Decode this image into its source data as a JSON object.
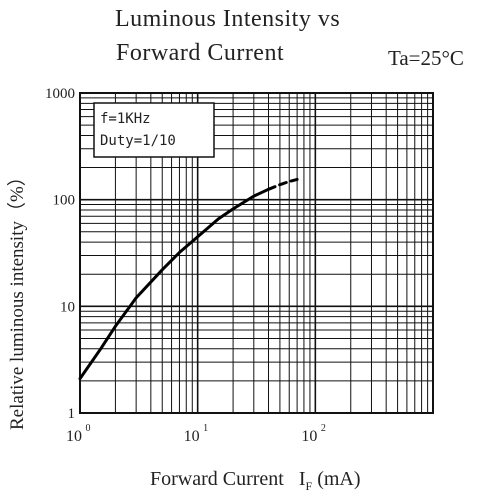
{
  "chart_data": {
    "type": "line",
    "title": "Luminous Intensity vs",
    "title_line2": "Forward Current",
    "condition": "Ta=25°C",
    "xlabel": "Forward Current",
    "xlabel_symbol": "I",
    "xlabel_sub": "F",
    "xlabel_unit": "(mA)",
    "ylabel": "Relative luminous intensity（%）",
    "x_scale": "log",
    "y_scale": "log",
    "xlim": [
      1,
      1000
    ],
    "ylim": [
      1,
      1000
    ],
    "x_ticks": [
      {
        "base": "10",
        "exp": "0"
      },
      {
        "base": "10",
        "exp": "1"
      },
      {
        "base": "10",
        "exp": "2"
      }
    ],
    "y_ticks": [
      "1",
      "10",
      "100",
      "1000"
    ],
    "legend_lines": [
      "f=1KHz",
      "Duty=1/10"
    ],
    "grid": true,
    "series": [
      {
        "x": [
          1,
          1.5,
          2,
          3,
          5,
          7,
          10,
          15,
          20,
          30,
          40
        ],
        "y": [
          2.1,
          4,
          6.5,
          12,
          22,
          32,
          45,
          66,
          82,
          108,
          125
        ],
        "style": "solid"
      },
      {
        "x": [
          40,
          50,
          60,
          70
        ],
        "y": [
          125,
          138,
          148,
          155
        ],
        "style": "dashed"
      }
    ]
  }
}
